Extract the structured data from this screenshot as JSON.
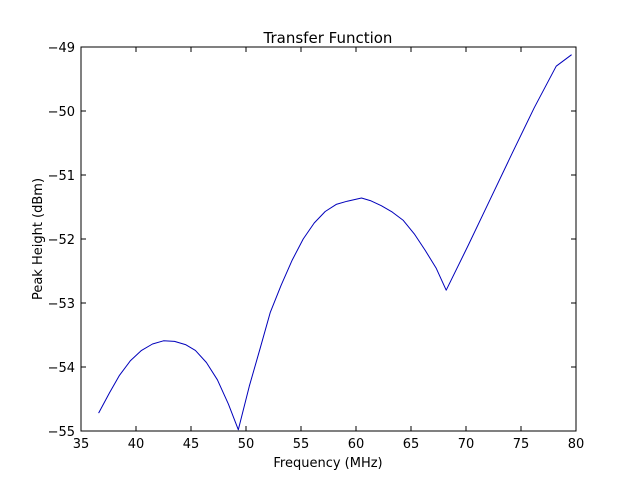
{
  "chart_data": {
    "type": "line",
    "title": "Transfer Function",
    "xlabel": "Frequency (MHz)",
    "ylabel": "Peak Height (dBm)",
    "xlim": [
      35,
      80
    ],
    "ylim": [
      -55,
      -49
    ],
    "xticks": [
      35,
      40,
      45,
      50,
      55,
      60,
      65,
      70,
      75,
      80
    ],
    "xtick_labels": [
      "35",
      "40",
      "45",
      "50",
      "55",
      "60",
      "65",
      "70",
      "75",
      "80"
    ],
    "yticks": [
      -55,
      -54,
      -53,
      -52,
      -51,
      -50,
      -49
    ],
    "ytick_labels": [
      "−55",
      "−54",
      "−53",
      "−52",
      "−51",
      "−50",
      "−49"
    ],
    "grid": false,
    "series": [
      {
        "color": "#0000bb",
        "x": [
          36.6,
          37.6,
          38.5,
          39.5,
          40.5,
          41.5,
          42.5,
          43.5,
          44.5,
          45.4,
          46.4,
          47.4,
          48.4,
          49.3,
          50.3,
          51.3,
          52.2,
          53.2,
          54.2,
          55.2,
          56.2,
          57.2,
          58.2,
          59.2,
          60.2,
          60.5,
          61.3,
          62.3,
          63.3,
          64.3,
          65.3,
          66.3,
          67.3,
          68.2,
          70.2,
          72.2,
          74.2,
          76.2,
          78.2,
          79.6
        ],
        "y": [
          -54.72,
          -54.4,
          -54.13,
          -53.9,
          -53.74,
          -53.64,
          -53.59,
          -53.6,
          -53.65,
          -53.74,
          -53.93,
          -54.2,
          -54.58,
          -54.98,
          -54.3,
          -53.7,
          -53.15,
          -52.72,
          -52.33,
          -52.0,
          -51.75,
          -51.57,
          -51.46,
          -51.41,
          -51.37,
          -51.36,
          -51.4,
          -51.48,
          -51.58,
          -51.71,
          -51.92,
          -52.18,
          -52.46,
          -52.8,
          -52.1,
          -51.38,
          -50.66,
          -49.95,
          -49.3,
          -49.12
        ]
      }
    ]
  }
}
